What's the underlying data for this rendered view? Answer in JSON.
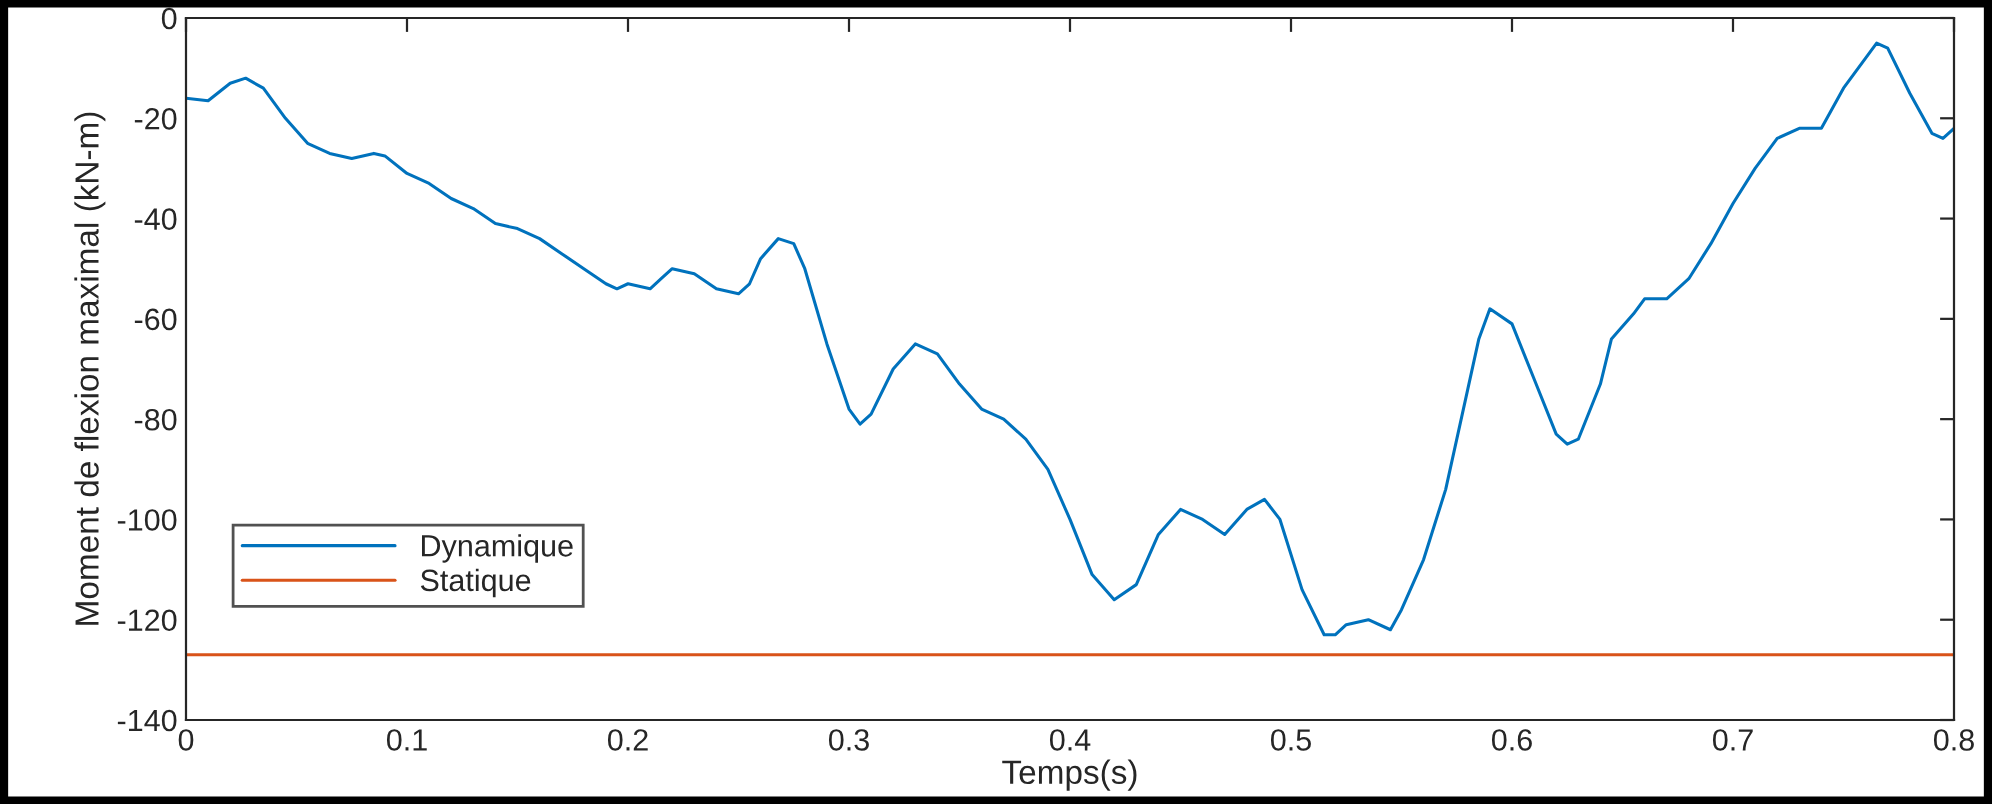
{
  "chart_data": {
    "type": "line",
    "xlabel": "Temps(s)",
    "ylabel": "Moment de flexion maximal (kN-m)",
    "xlim": [
      0,
      0.8
    ],
    "xticks": [
      0,
      0.1,
      0.2,
      0.3,
      0.4,
      0.5,
      0.6,
      0.7,
      0.8
    ],
    "ylim": [
      -140,
      0
    ],
    "yticks": [
      -140,
      -120,
      -100,
      -80,
      -60,
      -40,
      -20,
      0
    ],
    "grid": false,
    "legend": "bottom left",
    "line_style": "solid",
    "marker": "none",
    "series": [
      {
        "name": "Dynamique",
        "color": "#0072bd",
        "x": [
          0,
          0.01,
          0.02,
          0.027,
          0.035,
          0.045,
          0.055,
          0.065,
          0.075,
          0.085,
          0.09,
          0.1,
          0.11,
          0.12,
          0.13,
          0.14,
          0.15,
          0.16,
          0.17,
          0.18,
          0.19,
          0.195,
          0.2,
          0.21,
          0.215,
          0.22,
          0.23,
          0.24,
          0.25,
          0.255,
          0.26,
          0.268,
          0.275,
          0.28,
          0.29,
          0.3,
          0.305,
          0.31,
          0.32,
          0.33,
          0.34,
          0.35,
          0.36,
          0.37,
          0.38,
          0.39,
          0.4,
          0.41,
          0.42,
          0.43,
          0.44,
          0.45,
          0.46,
          0.47,
          0.48,
          0.488,
          0.495,
          0.505,
          0.515,
          0.52,
          0.525,
          0.535,
          0.545,
          0.55,
          0.56,
          0.57,
          0.58,
          0.585,
          0.59,
          0.6,
          0.61,
          0.62,
          0.625,
          0.63,
          0.64,
          0.645,
          0.655,
          0.66,
          0.67,
          0.68,
          0.69,
          0.7,
          0.71,
          0.72,
          0.73,
          0.74,
          0.75,
          0.76,
          0.765,
          0.77,
          0.78,
          0.79,
          0.795,
          0.8
        ],
        "values": [
          -16,
          -16.5,
          -13,
          -12,
          -14,
          -20,
          -25,
          -27,
          -28,
          -27,
          -27.5,
          -31,
          -33,
          -36,
          -38,
          -41,
          -42,
          -44,
          -47,
          -50,
          -53,
          -54,
          -53,
          -54,
          -52,
          -50,
          -51,
          -54,
          -55,
          -53,
          -48,
          -44,
          -45,
          -50,
          -65,
          -78,
          -81,
          -79,
          -70,
          -65,
          -67,
          -73,
          -78,
          -80,
          -84,
          -90,
          -100,
          -111,
          -116,
          -113,
          -103,
          -98,
          -100,
          -103,
          -98,
          -96,
          -100,
          -114,
          -123,
          -123,
          -121,
          -120,
          -122,
          -118,
          -108,
          -94,
          -74,
          -64,
          -58,
          -61,
          -72,
          -83,
          -85,
          -84,
          -73,
          -64,
          -59,
          -56,
          -56,
          -52,
          -45,
          -37,
          -30,
          -24,
          -22,
          -22,
          -14,
          -8,
          -5,
          -6,
          -15,
          -23,
          -24,
          -22
        ]
      },
      {
        "name": "Statique",
        "color": "#d95319",
        "x": [
          0,
          0.8
        ],
        "values": [
          -127,
          -127
        ]
      }
    ]
  }
}
